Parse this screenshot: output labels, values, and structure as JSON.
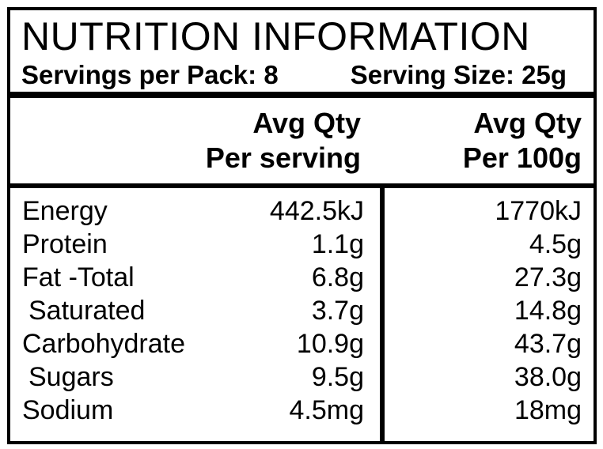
{
  "title": "NUTRITION INFORMATION",
  "servings": {
    "per_pack": "Servings per Pack: 8",
    "size": "Serving Size: 25g"
  },
  "column_headers": {
    "per_serving": {
      "line1": "Avg Qty",
      "line2": "Per serving"
    },
    "per_100g": {
      "line1": "Avg Qty",
      "line2": "Per 100g"
    }
  },
  "rows": [
    {
      "nutrient": "Energy",
      "per_serving": "442.5kJ",
      "per_100g": "1770kJ"
    },
    {
      "nutrient": "Protein",
      "per_serving": "1.1g",
      "per_100g": "4.5g"
    },
    {
      "nutrient": "Fat -Total",
      "per_serving": "6.8g",
      "per_100g": "27.3g"
    },
    {
      "nutrient": "Saturated",
      "per_serving": "3.7g",
      "per_100g": "14.8g"
    },
    {
      "nutrient": "Carbohydrate",
      "per_serving": "10.9g",
      "per_100g": "43.7g"
    },
    {
      "nutrient": "Sugars",
      "per_serving": "9.5g",
      "per_100g": "38.0g"
    },
    {
      "nutrient": "Sodium",
      "per_serving": "4.5mg",
      "per_100g": "18mg"
    }
  ],
  "colors": {
    "background": "#ffffff",
    "text": "#000000",
    "border": "#000000"
  }
}
